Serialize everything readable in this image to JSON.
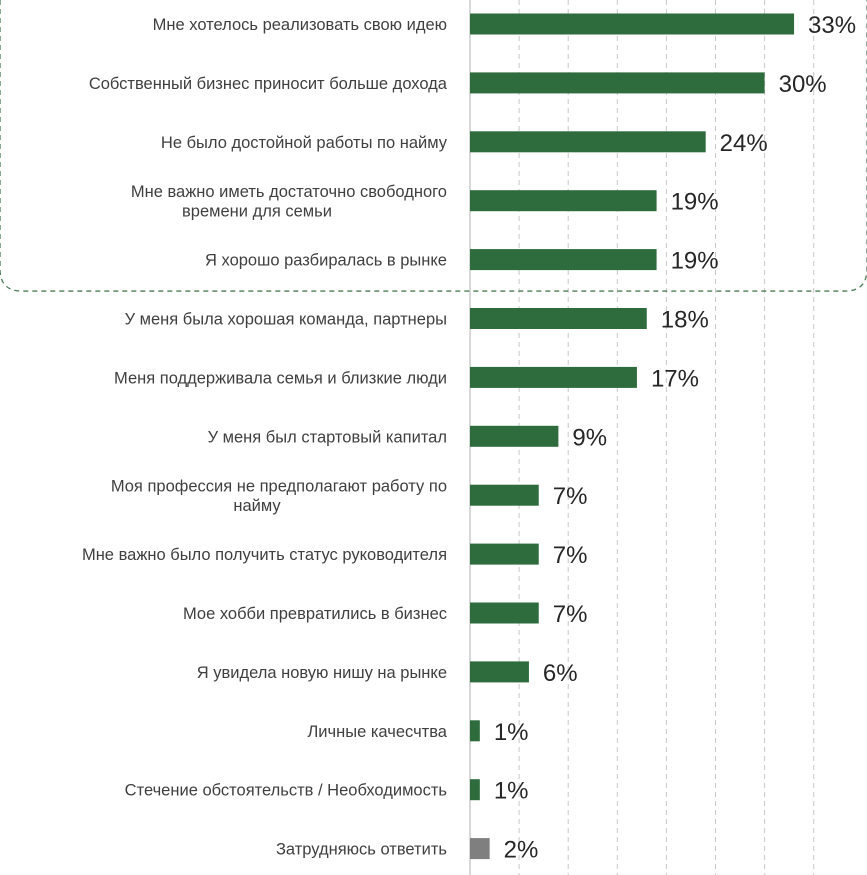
{
  "chart_data": {
    "type": "bar",
    "orientation": "horizontal",
    "categories": [
      "Мне хотелось реализовать свою идею",
      "Собственный бизнес приносит больше дохода",
      "Не было достойной работы по найму",
      "Мне важно иметь достаточно свободного времени для семьи",
      "Я хорошо разбиралась в рынке",
      "У меня была хорошая команда, партнеры",
      "Меня поддерживала семья и близкие люди",
      "У меня был стартовый капитал",
      "Моя профессия не предполагают работу по найму",
      "Мне важно было получить статус руководителя",
      "Мое хобби превратились в бизнес",
      "Я увидела новую нишу на рынке",
      "Личные качесчтва",
      "Стечение обстоятельств / Необходимость",
      "Затрудняюсь ответить"
    ],
    "label_lines": [
      [
        "Мне хотелось реализовать свою идею"
      ],
      [
        "Собственный бизнес приносит больше дохода"
      ],
      [
        "Не было достойной работы по найму"
      ],
      [
        "Мне важно иметь достаточно свободного",
        "времени для семьи"
      ],
      [
        "Я хорошо разбиралась в рынке"
      ],
      [
        "У меня была хорошая команда, партнеры"
      ],
      [
        "Меня поддерживала семья и близкие люди"
      ],
      [
        "У меня был стартовый капитал"
      ],
      [
        "Моя профессия не предполагают работу по",
        "найму"
      ],
      [
        "Мне важно было получить статус руководителя"
      ],
      [
        "Мое хобби превратились в бизнес"
      ],
      [
        "Я увидела новую нишу на рынке"
      ],
      [
        "Личные качесчтва"
      ],
      [
        "Стечение обстоятельств / Необходимость"
      ],
      [
        "Затрудняюсь ответить"
      ]
    ],
    "values": [
      33,
      30,
      24,
      19,
      19,
      18,
      17,
      9,
      7,
      7,
      7,
      6,
      1,
      1,
      2
    ],
    "value_labels": [
      "33%",
      "30%",
      "24%",
      "19%",
      "19%",
      "18%",
      "17%",
      "9%",
      "7%",
      "7%",
      "7%",
      "6%",
      "1%",
      "1%",
      "2%"
    ],
    "xlim": [
      0,
      35
    ],
    "grid": true,
    "highlighted_top_count": 5,
    "colors": {
      "bar": "#2e6b3d",
      "bar_neutral": "#7f7f7f",
      "grid": "#c8c8c8",
      "axis": "#bfbfbf",
      "highlight_border": "#4f7d59"
    }
  }
}
